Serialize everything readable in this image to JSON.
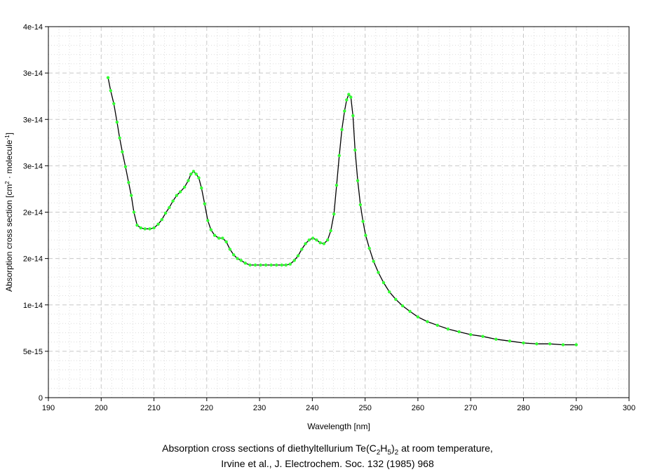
{
  "chart_data": {
    "type": "line",
    "xlabel": "Wavelength [nm]",
    "ylabel": {
      "prefix": "Absorption cross section [cm",
      "sup1": "2",
      "middle": " · molecule",
      "sup2": "-1",
      "suffix": "]"
    },
    "xlim": [
      190,
      300
    ],
    "ylim": [
      0,
      4e-14
    ],
    "x_ticks": [
      190,
      200,
      210,
      220,
      230,
      240,
      250,
      260,
      270,
      280,
      290,
      300
    ],
    "x_tick_labels": [
      "190",
      "200",
      "210",
      "220",
      "230",
      "240",
      "250",
      "260",
      "270",
      "280",
      "290",
      "300"
    ],
    "y_ticks": [
      0,
      5e-15,
      1e-14,
      1.5e-14,
      2e-14,
      2.5e-14,
      3e-14,
      3.5e-14,
      4e-14
    ],
    "y_tick_labels": [
      "0",
      "5e-15",
      "1e-14",
      "2e-14",
      "2e-14",
      "3e-14",
      "3e-14",
      "3e-14",
      "4e-14"
    ],
    "grid": true,
    "legend": null,
    "colors": {
      "line": "#000000",
      "marker": "#33ff33",
      "grid": "#c8c8c8"
    },
    "series": [
      {
        "x": [
          201.3,
          201.8,
          202.4,
          203.0,
          203.5,
          204.0,
          204.6,
          205.2,
          205.7,
          206.2,
          206.8,
          207.5,
          208.3,
          209.2,
          210.0,
          210.8,
          211.5,
          212.2,
          212.9,
          213.6,
          214.3,
          215.0,
          215.8,
          216.5,
          217.0,
          217.5,
          218.0,
          218.5,
          219.0,
          219.6,
          220.2,
          220.8,
          221.5,
          222.3,
          223.0,
          223.7,
          224.4,
          225.1,
          225.8,
          226.5,
          227.3,
          228.2,
          229.2,
          230.2,
          231.2,
          232.2,
          233.2,
          234.2,
          235.0,
          235.8,
          236.6,
          237.3,
          238.0,
          238.7,
          239.4,
          240.1,
          240.8,
          241.5,
          242.2,
          242.9,
          243.5,
          244.1,
          244.6,
          245.1,
          245.6,
          246.1,
          246.5,
          246.9,
          247.3,
          247.7,
          248.1,
          248.6,
          249.1,
          249.6,
          250.1,
          250.8,
          251.6,
          252.5,
          253.5,
          254.6,
          255.8,
          257.1,
          258.5,
          260.0,
          261.8,
          263.7,
          265.7,
          267.8,
          270.0,
          272.3,
          274.8,
          277.4,
          280.0,
          282.5,
          285.0,
          287.5,
          290.0
        ],
        "y": [
          3.45e-14,
          3.31e-14,
          3.17e-14,
          2.97e-14,
          2.8e-14,
          2.65e-14,
          2.49e-14,
          2.32e-14,
          2.18e-14,
          2e-14,
          1.86e-14,
          1.83e-14,
          1.82e-14,
          1.82e-14,
          1.83e-14,
          1.87e-14,
          1.92e-14,
          1.99e-14,
          2.05e-14,
          2.12e-14,
          2.18e-14,
          2.22e-14,
          2.27e-14,
          2.34e-14,
          2.41e-14,
          2.44e-14,
          2.41e-14,
          2.37e-14,
          2.26e-14,
          2.09e-14,
          1.91e-14,
          1.81e-14,
          1.75e-14,
          1.72e-14,
          1.72e-14,
          1.68e-14,
          1.6e-14,
          1.54e-14,
          1.5e-14,
          1.48e-14,
          1.45e-14,
          1.43e-14,
          1.43e-14,
          1.43e-14,
          1.43e-14,
          1.43e-14,
          1.43e-14,
          1.43e-14,
          1.43e-14,
          1.44e-14,
          1.48e-14,
          1.53e-14,
          1.6e-14,
          1.66e-14,
          1.7e-14,
          1.72e-14,
          1.7e-14,
          1.67e-14,
          1.66e-14,
          1.7e-14,
          1.8e-14,
          1.98e-14,
          2.29e-14,
          2.61e-14,
          2.89e-14,
          3.09e-14,
          3.21e-14,
          3.27e-14,
          3.24e-14,
          3.04e-14,
          2.67e-14,
          2.34e-14,
          2.08e-14,
          1.9e-14,
          1.75e-14,
          1.61e-14,
          1.47e-14,
          1.35e-14,
          1.24e-14,
          1.14e-14,
          1.06e-14,
          9.9e-15,
          9.3e-15,
          8.7e-15,
          8.2e-15,
          7.8e-15,
          7.4e-15,
          7.1e-15,
          6.8e-15,
          6.6e-15,
          6.3e-15,
          6.1e-15,
          5.9e-15,
          5.8e-15,
          5.8e-15,
          5.7e-15,
          5.7e-15
        ]
      }
    ]
  },
  "caption": {
    "line1_prefix": "Absorption cross sections of diethyltellurium Te(C",
    "sub1": "2",
    "line1_mid1": "H",
    "sub2": "5",
    "line1_mid2": ")",
    "sub3": "2",
    "line1_suffix": " at room temperature,",
    "line2": "Irvine et al., J. Electrochem. Soc. 132 (1985) 968"
  }
}
